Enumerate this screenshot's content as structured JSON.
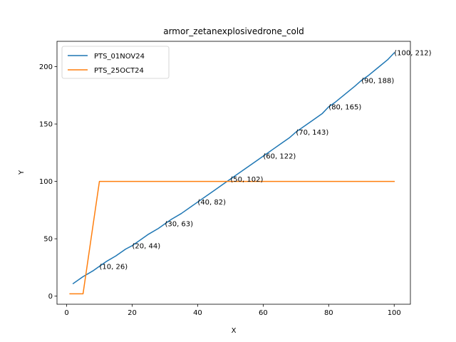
{
  "chart_data": {
    "type": "line",
    "title": "armor_zetanexplosivedrone_cold",
    "xlabel": "X",
    "ylabel": "Y",
    "xlim": [
      -2.95,
      104.95
    ],
    "ylim": [
      -7.05,
      222.05
    ],
    "xticks": [
      0,
      20,
      40,
      60,
      80,
      100
    ],
    "yticks": [
      0,
      50,
      100,
      150,
      200
    ],
    "grid": false,
    "legend_position": "upper left",
    "series": [
      {
        "name": "PTS_01NOV24",
        "color": "#1f77b4",
        "x": [
          2,
          5,
          8,
          10,
          12,
          15,
          18,
          20,
          22,
          25,
          28,
          30,
          32,
          35,
          38,
          40,
          42,
          45,
          48,
          50,
          52,
          55,
          58,
          60,
          62,
          65,
          68,
          70,
          72,
          75,
          78,
          80,
          82,
          85,
          88,
          90,
          92,
          95,
          98,
          100
        ],
        "y": [
          11,
          17,
          22,
          26,
          30,
          35,
          41,
          44,
          48,
          54,
          59,
          63,
          67,
          72,
          78,
          82,
          86,
          92,
          98,
          102,
          106,
          112,
          118,
          122,
          126,
          132,
          138,
          143,
          147,
          153,
          159,
          165,
          169,
          176,
          183,
          188,
          192,
          199,
          206,
          212
        ]
      },
      {
        "name": "PTS_25OCT24",
        "color": "#ff7f0e",
        "x": [
          1,
          5,
          10,
          100
        ],
        "y": [
          2,
          2,
          100,
          100
        ]
      }
    ],
    "annotations": [
      {
        "text": "(10, 26)",
        "x": 10,
        "y": 26
      },
      {
        "text": "(20, 44)",
        "x": 20,
        "y": 44
      },
      {
        "text": "(30, 63)",
        "x": 30,
        "y": 63
      },
      {
        "text": "(40, 82)",
        "x": 40,
        "y": 82
      },
      {
        "text": "(50, 102)",
        "x": 50,
        "y": 102
      },
      {
        "text": "(60, 122)",
        "x": 60,
        "y": 122
      },
      {
        "text": "(70, 143)",
        "x": 70,
        "y": 143
      },
      {
        "text": "(80, 165)",
        "x": 80,
        "y": 165
      },
      {
        "text": "(90, 188)",
        "x": 90,
        "y": 188
      },
      {
        "text": "(100, 212)",
        "x": 100,
        "y": 212
      }
    ]
  }
}
